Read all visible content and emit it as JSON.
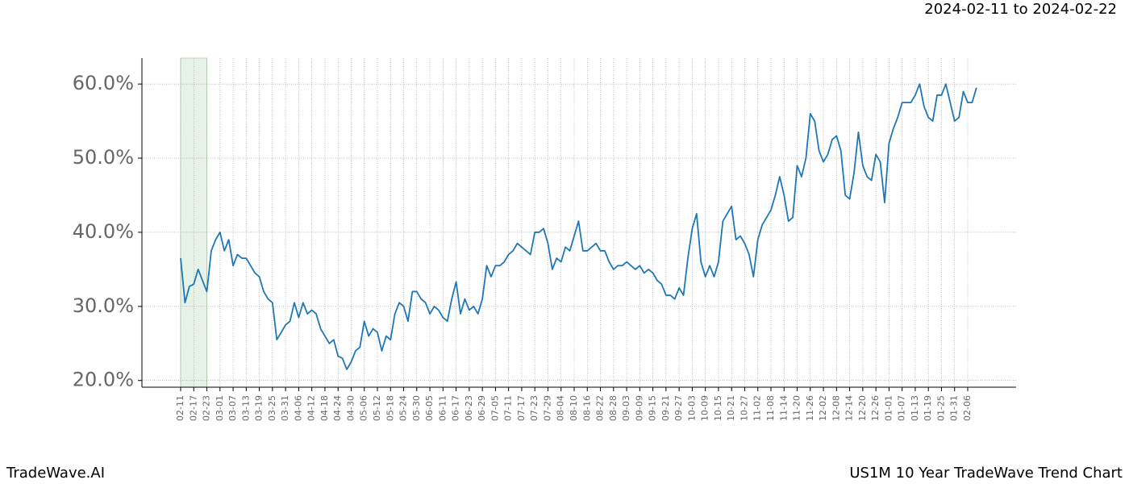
{
  "chart_data": {
    "type": "line",
    "date_range": "2024-02-11 to 2024-02-22",
    "brand": "TradeWave.AI",
    "title": "US1M 10 Year TradeWave Trend Chart",
    "categories": [
      "02-11",
      null,
      null,
      "02-17",
      null,
      null,
      "02-23",
      null,
      null,
      "03-01",
      null,
      null,
      "03-07",
      null,
      null,
      "03-13",
      null,
      null,
      "03-19",
      null,
      null,
      "03-25",
      null,
      null,
      "03-31",
      null,
      null,
      "04-06",
      null,
      null,
      "04-12",
      null,
      null,
      "04-18",
      null,
      null,
      "04-24",
      null,
      null,
      "04-30",
      null,
      null,
      "05-06",
      null,
      null,
      "05-12",
      null,
      null,
      "05-18",
      null,
      null,
      "05-24",
      null,
      null,
      "05-30",
      null,
      null,
      "06-05",
      null,
      null,
      "06-11",
      null,
      null,
      "06-17",
      null,
      null,
      "06-23",
      null,
      null,
      "06-29",
      null,
      null,
      "07-05",
      null,
      null,
      "07-11",
      null,
      null,
      "07-17",
      null,
      null,
      "07-23",
      null,
      null,
      "07-29",
      null,
      null,
      "08-04",
      null,
      null,
      "08-10",
      null,
      null,
      "08-16",
      null,
      null,
      "08-22",
      null,
      null,
      "08-28",
      null,
      null,
      "09-03",
      null,
      null,
      "09-09",
      null,
      null,
      "09-15",
      null,
      null,
      "09-21",
      null,
      null,
      "09-27",
      null,
      null,
      "10-03",
      null,
      null,
      "10-09",
      null,
      null,
      "10-15",
      null,
      null,
      "10-21",
      null,
      null,
      "10-27",
      null,
      null,
      "11-02",
      null,
      null,
      "11-08",
      null,
      null,
      "11-14",
      null,
      null,
      "11-20",
      null,
      null,
      "11-26",
      null,
      null,
      "12-02",
      null,
      null,
      "12-08",
      null,
      null,
      "12-14",
      null,
      null,
      "12-20",
      null,
      null,
      "12-26",
      null,
      null,
      "01-01",
      null,
      null,
      "01-07",
      null,
      null,
      "01-13",
      null,
      null,
      "01-19",
      null,
      null,
      "01-25",
      null,
      null,
      "01-31",
      null,
      null,
      "02-06",
      null,
      null
    ],
    "series": [
      {
        "name": "US1M",
        "color": "#1f77b4",
        "values": [
          36.5,
          30.5,
          32.7,
          33,
          35,
          33.5,
          32,
          37.5,
          39,
          40,
          37.5,
          39,
          35.5,
          37,
          36.5,
          36.5,
          35.5,
          34.5,
          34,
          32,
          31,
          30.5,
          25.5,
          26.5,
          27.5,
          28,
          30.5,
          28.5,
          30.5,
          29,
          29.5,
          29,
          27,
          26,
          25,
          25.5,
          23.3,
          23,
          21.5,
          22.5,
          24,
          24.5,
          28,
          26,
          27,
          26.5,
          24,
          26,
          25.5,
          29,
          30.5,
          30,
          28,
          32,
          32,
          31,
          30.5,
          29,
          30,
          29.5,
          28.5,
          28,
          31,
          33.3,
          29,
          31,
          29.5,
          30,
          29,
          31,
          35.5,
          34,
          35.5,
          35.5,
          36,
          37,
          37.5,
          38.5,
          38,
          37.5,
          37,
          40,
          40,
          40.5,
          38.5,
          35,
          36.5,
          36,
          38,
          37.5,
          39.5,
          41.5,
          37.5,
          37.5,
          38,
          38.5,
          37.5,
          37.5,
          36,
          35,
          35.5,
          35.5,
          36,
          35.5,
          35,
          35.5,
          34.5,
          35,
          34.5,
          33.5,
          33,
          31.5,
          31.5,
          31,
          32.5,
          31.5,
          36.5,
          40.5,
          42.5,
          36,
          34,
          35.5,
          34,
          36,
          41.5,
          42.5,
          43.5,
          39,
          39.5,
          38.5,
          37,
          34,
          39,
          41,
          42,
          43,
          45,
          47.5,
          45,
          41.5,
          42,
          49,
          47.5,
          50,
          56,
          55,
          51,
          49.5,
          50.5,
          52.5,
          53,
          51,
          45,
          44.5,
          48,
          53.5,
          49,
          47.5,
          47,
          50.5,
          49.5,
          44,
          52,
          54,
          55.5,
          57.5,
          57.5,
          57.5,
          58.5,
          60,
          57,
          55.5,
          55,
          58.5,
          58.5,
          60,
          57.5,
          55,
          55.5,
          59,
          57.5,
          57.5,
          59.5
        ]
      }
    ],
    "shaded_range": [
      "02-11",
      "02-23"
    ],
    "shade_color": "#e6f2e6",
    "ylim": [
      19.1,
      63.5
    ],
    "yticks": [
      {
        "value": 20,
        "label": "20.0%"
      },
      {
        "value": 30,
        "label": "30.0%"
      },
      {
        "value": 40,
        "label": "40.0%"
      },
      {
        "value": 50,
        "label": "50.0%"
      },
      {
        "value": 60,
        "label": "60.0%"
      }
    ],
    "grid": true
  }
}
